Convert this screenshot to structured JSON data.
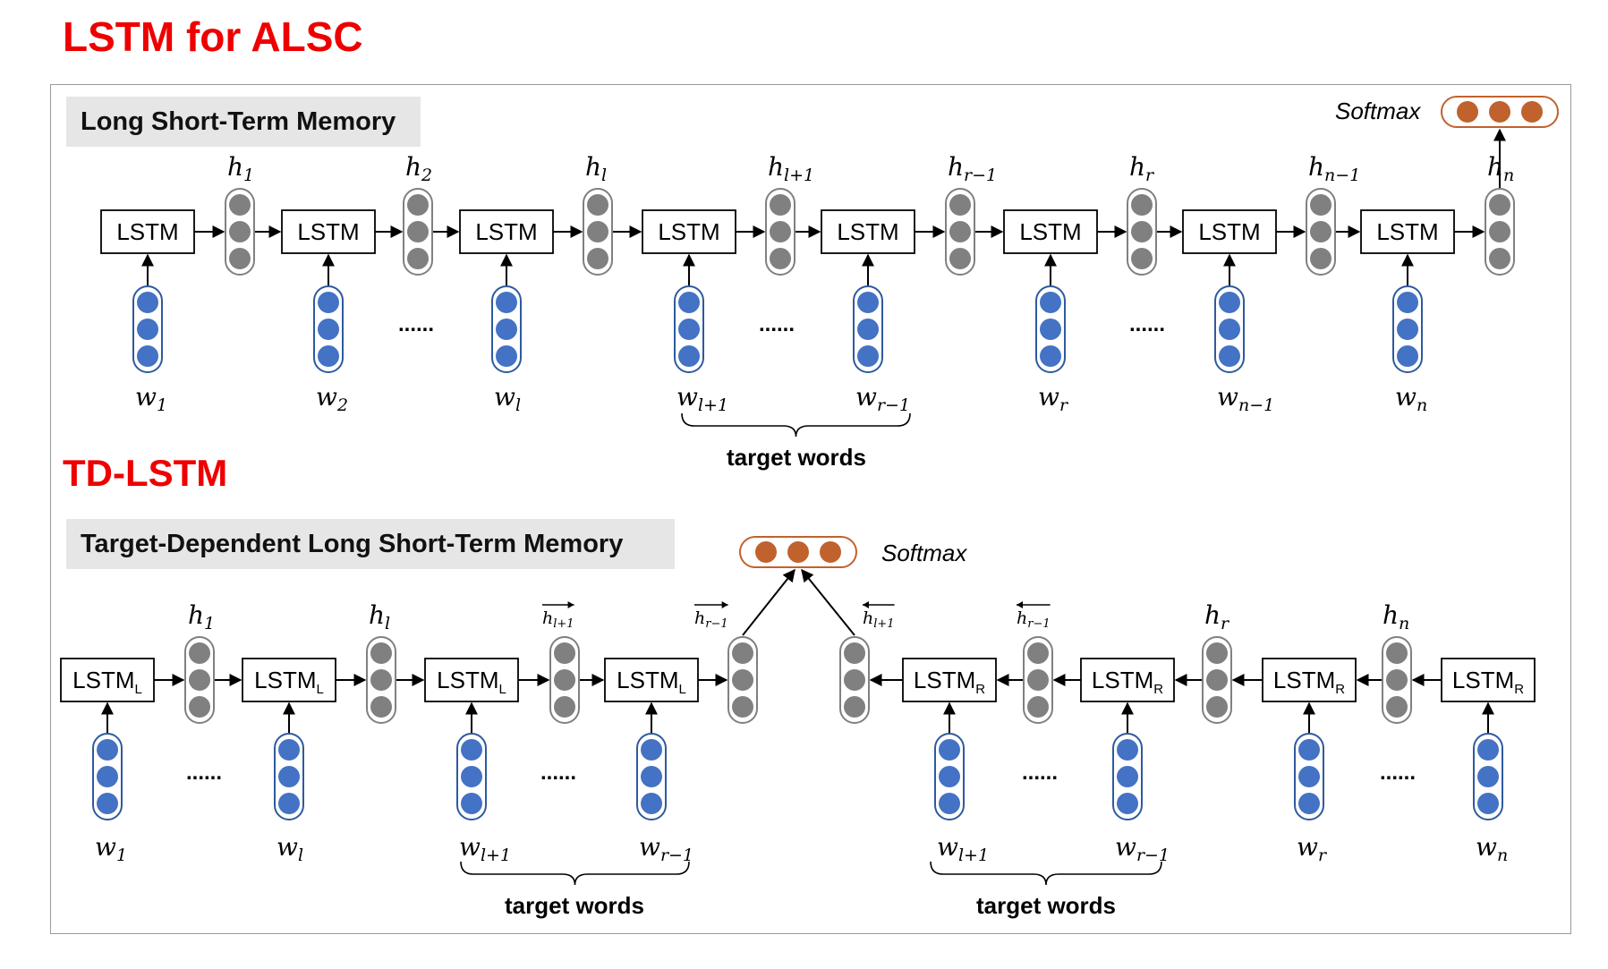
{
  "titles": {
    "top": "LSTM for ALSC",
    "bottom": "TD-LSTM"
  },
  "panel_top": {
    "band_label": "Long Short-Term Memory",
    "softmax_label": "Softmax",
    "cells": [
      {
        "label": "LSTM",
        "h": "1",
        "w": "1"
      },
      {
        "label": "LSTM",
        "h": "2",
        "w": "2"
      },
      {
        "label": "LSTM",
        "h": "l",
        "w": "l"
      },
      {
        "label": "LSTM",
        "h": "l+1",
        "w": "l+1"
      },
      {
        "label": "LSTM",
        "h": "r−1",
        "w": "r−1"
      },
      {
        "label": "LSTM",
        "h": "r",
        "w": "r"
      },
      {
        "label": "LSTM",
        "h": "n−1",
        "w": "n−1"
      },
      {
        "label": "LSTM",
        "h": "n",
        "w": "n"
      }
    ],
    "ellipsis": "......",
    "target_label": "target words"
  },
  "panel_bottom": {
    "band_label": "Target-Dependent Long Short-Term Memory",
    "softmax_label": "Softmax",
    "left_cells": [
      {
        "label": "LSTM",
        "sub": "L",
        "h": "1",
        "w": "1"
      },
      {
        "label": "LSTM",
        "sub": "L",
        "h": "l",
        "w": "l"
      },
      {
        "label": "LSTM",
        "sub": "L",
        "h": "l+1",
        "w": "l+1"
      },
      {
        "label": "LSTM",
        "sub": "L",
        "h": "r−1",
        "w": "r−1"
      }
    ],
    "right_cells": [
      {
        "label": "LSTM",
        "sub": "R",
        "h": "l+1",
        "w": "l+1"
      },
      {
        "label": "LSTM",
        "sub": "R",
        "h": "r−1",
        "w": "r−1"
      },
      {
        "label": "LSTM",
        "sub": "R",
        "h": "r",
        "w": "r"
      },
      {
        "label": "LSTM",
        "sub": "R",
        "h": "n",
        "w": "n"
      }
    ],
    "ellipsis": "......",
    "target_label": "target words"
  },
  "colors": {
    "hidden": "#808080",
    "word": "#4472c4",
    "softmax": "#c0622d",
    "softmax_border": "#c0622d",
    "word_border": "#2e5a9e",
    "title": "#ee0000"
  }
}
